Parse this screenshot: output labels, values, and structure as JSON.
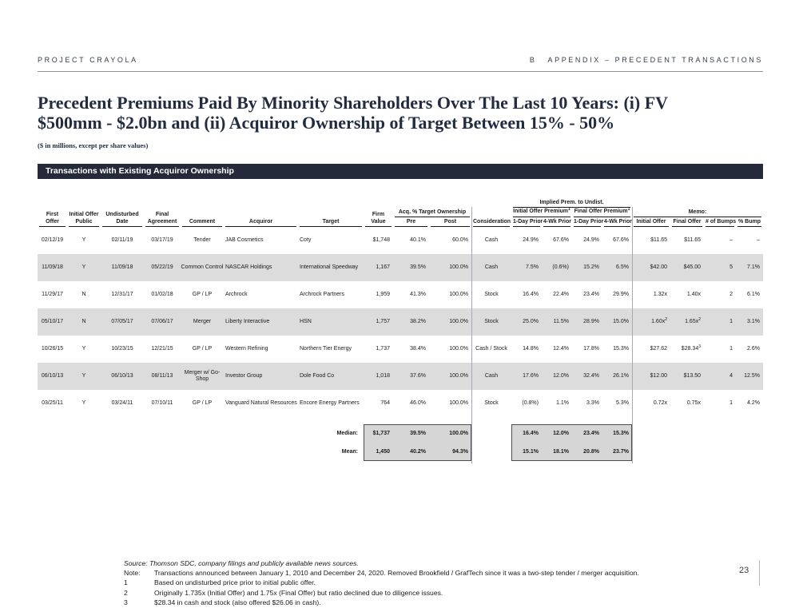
{
  "header": {
    "left": "PROJECT CRAYOLA",
    "right_tab": "B",
    "right": "APPENDIX – PRECEDENT TRANSACTIONS"
  },
  "title": {
    "line1": "Precedent Premiums Paid By Minority Shareholders Over The Last 10 Years: (i) FV",
    "line2": "$500mm - $2.0bn and (ii) Acquiror Ownership of Target Between 15% - 50%",
    "subtitle": "($ in millions, except per share values)"
  },
  "banner": "Transactions with Existing Acquiror Ownership",
  "colors": {
    "banner_bg": "#242a3a",
    "row_shade": "#dcdcdc",
    "summary_box_bg": "#d6d6d6",
    "title_color": "#222c40"
  },
  "table": {
    "groups": {
      "implied": "Implied Prem. to Undist.",
      "acq_own": "Acq. % Target Ownership",
      "init_prem": "Initial Offer Premium",
      "final_prem": "Final Offer Premium",
      "sup": "1",
      "memo": "Memo:"
    },
    "h": {
      "first_offer": [
        "First",
        "Offer"
      ],
      "public": [
        "Initial Offer",
        "Public"
      ],
      "undisturbed": [
        "Undisturbed",
        "Date"
      ],
      "agreement": [
        "Final",
        "Agreement"
      ],
      "comment": "Comment",
      "acquiror": "Acquiror",
      "target": "Target",
      "firm_value": [
        "Firm",
        "Value"
      ],
      "pre": "Pre",
      "post": "Post",
      "consideration": "Consideration",
      "day1": "1-Day Prior",
      "wk4": "4-Wk Prior",
      "init_offer": "Initial Offer",
      "final_offer": "Final Offer",
      "bumps": "# of Bumps",
      "bump_pct": "% Bump"
    },
    "rows": [
      {
        "first_offer": "02/12/19",
        "public": "Y",
        "undisturbed": "02/11/19",
        "agreement": "03/17/19",
        "comment": "Tender",
        "acquiror": "JAB Cosmetics",
        "target": "Coty",
        "firm_value": "$1,748",
        "pre": "40.1%",
        "post": "60.0%",
        "consideration": "Cash",
        "io_1d": "24.9%",
        "io_4w": "67.6%",
        "fo_1d": "24.9%",
        "fo_4w": "67.6%",
        "init_offer": "$11.65",
        "final_offer": "$11.65",
        "bumps": "–",
        "bump_pct": "–"
      },
      {
        "first_offer": "11/09/18",
        "public": "Y",
        "undisturbed": "11/09/18",
        "agreement": "05/22/19",
        "comment": "Common Control",
        "acquiror": "NASCAR Holdings",
        "target": "International Speedway",
        "firm_value": "1,167",
        "pre": "39.5%",
        "post": "100.0%",
        "consideration": "Cash",
        "io_1d": "7.5%",
        "io_4w": "(0.6%)",
        "fo_1d": "15.2%",
        "fo_4w": "6.5%",
        "init_offer": "$42.00",
        "final_offer": "$45.00",
        "bumps": "5",
        "bump_pct": "7.1%"
      },
      {
        "first_offer": "11/29/17",
        "public": "N",
        "undisturbed": "12/31/17",
        "agreement": "01/02/18",
        "comment": "GP / LP",
        "acquiror": "Archrock",
        "target": "Archrock Partners",
        "firm_value": "1,959",
        "pre": "41.3%",
        "post": "100.0%",
        "consideration": "Stock",
        "io_1d": "16.4%",
        "io_4w": "22.4%",
        "fo_1d": "23.4%",
        "fo_4w": "29.9%",
        "init_offer": "1.32x",
        "final_offer": "1.40x",
        "bumps": "2",
        "bump_pct": "6.1%"
      },
      {
        "first_offer": "05/10/17",
        "public": "N",
        "undisturbed": "07/05/17",
        "agreement": "07/06/17",
        "comment": "Merger",
        "acquiror": "Liberty Interactive",
        "target": "HSN",
        "firm_value": "1,757",
        "pre": "38.2%",
        "post": "100.0%",
        "consideration": "Stock",
        "io_1d": "25.0%",
        "io_4w": "11.5%",
        "fo_1d": "28.9%",
        "fo_4w": "15.0%",
        "init_offer": "1.60x",
        "init_offer_sup": "2",
        "final_offer": "1.65x",
        "final_offer_sup": "2",
        "bumps": "1",
        "bump_pct": "3.1%"
      },
      {
        "first_offer": "10/26/15",
        "public": "Y",
        "undisturbed": "10/23/15",
        "agreement": "12/21/15",
        "comment": "GP / LP",
        "acquiror": "Western Refining",
        "target": "Northern Tier Energy",
        "firm_value": "1,737",
        "pre": "38.4%",
        "post": "100.0%",
        "consideration": "Cash / Stock",
        "io_1d": "14.8%",
        "io_4w": "12.4%",
        "fo_1d": "17.8%",
        "fo_4w": "15.3%",
        "init_offer": "$27.62",
        "final_offer": "$28.34",
        "final_offer_sup": "3",
        "bumps": "1",
        "bump_pct": "2.6%"
      },
      {
        "first_offer": "06/10/13",
        "public": "Y",
        "undisturbed": "06/10/13",
        "agreement": "08/11/13",
        "comment": "Merger w/ Go-Shop",
        "acquiror": "Investor Group",
        "target": "Dole Food Co",
        "firm_value": "1,018",
        "pre": "37.6%",
        "post": "100.0%",
        "consideration": "Cash",
        "io_1d": "17.6%",
        "io_4w": "12.0%",
        "fo_1d": "32.4%",
        "fo_4w": "26.1%",
        "init_offer": "$12.00",
        "final_offer": "$13.50",
        "bumps": "4",
        "bump_pct": "12.5%"
      },
      {
        "first_offer": "03/25/11",
        "public": "Y",
        "undisturbed": "03/24/11",
        "agreement": "07/10/11",
        "comment": "GP / LP",
        "acquiror": "Vanguard Natural Resources",
        "target": "Encore Energy Partners",
        "firm_value": "764",
        "pre": "46.0%",
        "post": "100.0%",
        "consideration": "Stock",
        "io_1d": "(0.8%)",
        "io_4w": "1.1%",
        "fo_1d": "3.3%",
        "fo_4w": "5.3%",
        "init_offer": "0.72x",
        "final_offer": "0.75x",
        "bumps": "1",
        "bump_pct": "4.2%"
      }
    ],
    "summary": [
      {
        "label": "Median:",
        "firm_value": "$1,737",
        "pre": "39.5%",
        "post": "100.0%",
        "io_1d": "16.4%",
        "io_4w": "12.0%",
        "fo_1d": "23.4%",
        "fo_4w": "15.3%"
      },
      {
        "label": "Mean:",
        "firm_value": "1,450",
        "pre": "40.2%",
        "post": "94.3%",
        "io_1d": "15.1%",
        "io_4w": "18.1%",
        "fo_1d": "20.8%",
        "fo_4w": "23.7%"
      }
    ]
  },
  "footnotes": {
    "source": "Source: Thomson SDC, company filings and publicly available news sources.",
    "note_label": "Note:",
    "note": "Transactions announced between January 1, 2010 and December 24, 2020. Removed Brookfield / GrafTech since it was a two-step tender / merger acquisition.",
    "fn1_label": "1",
    "fn1": "Based on undisturbed price prior to initial public offer.",
    "fn2_label": "2",
    "fn2": "Originally 1.735x (Initial Offer) and 1.75x (Final Offer) but ratio declined due to diligence issues.",
    "fn3_label": "3",
    "fn3": "$28.34 in cash and stock (also offered $26.06 in cash)."
  },
  "page_number": "23"
}
